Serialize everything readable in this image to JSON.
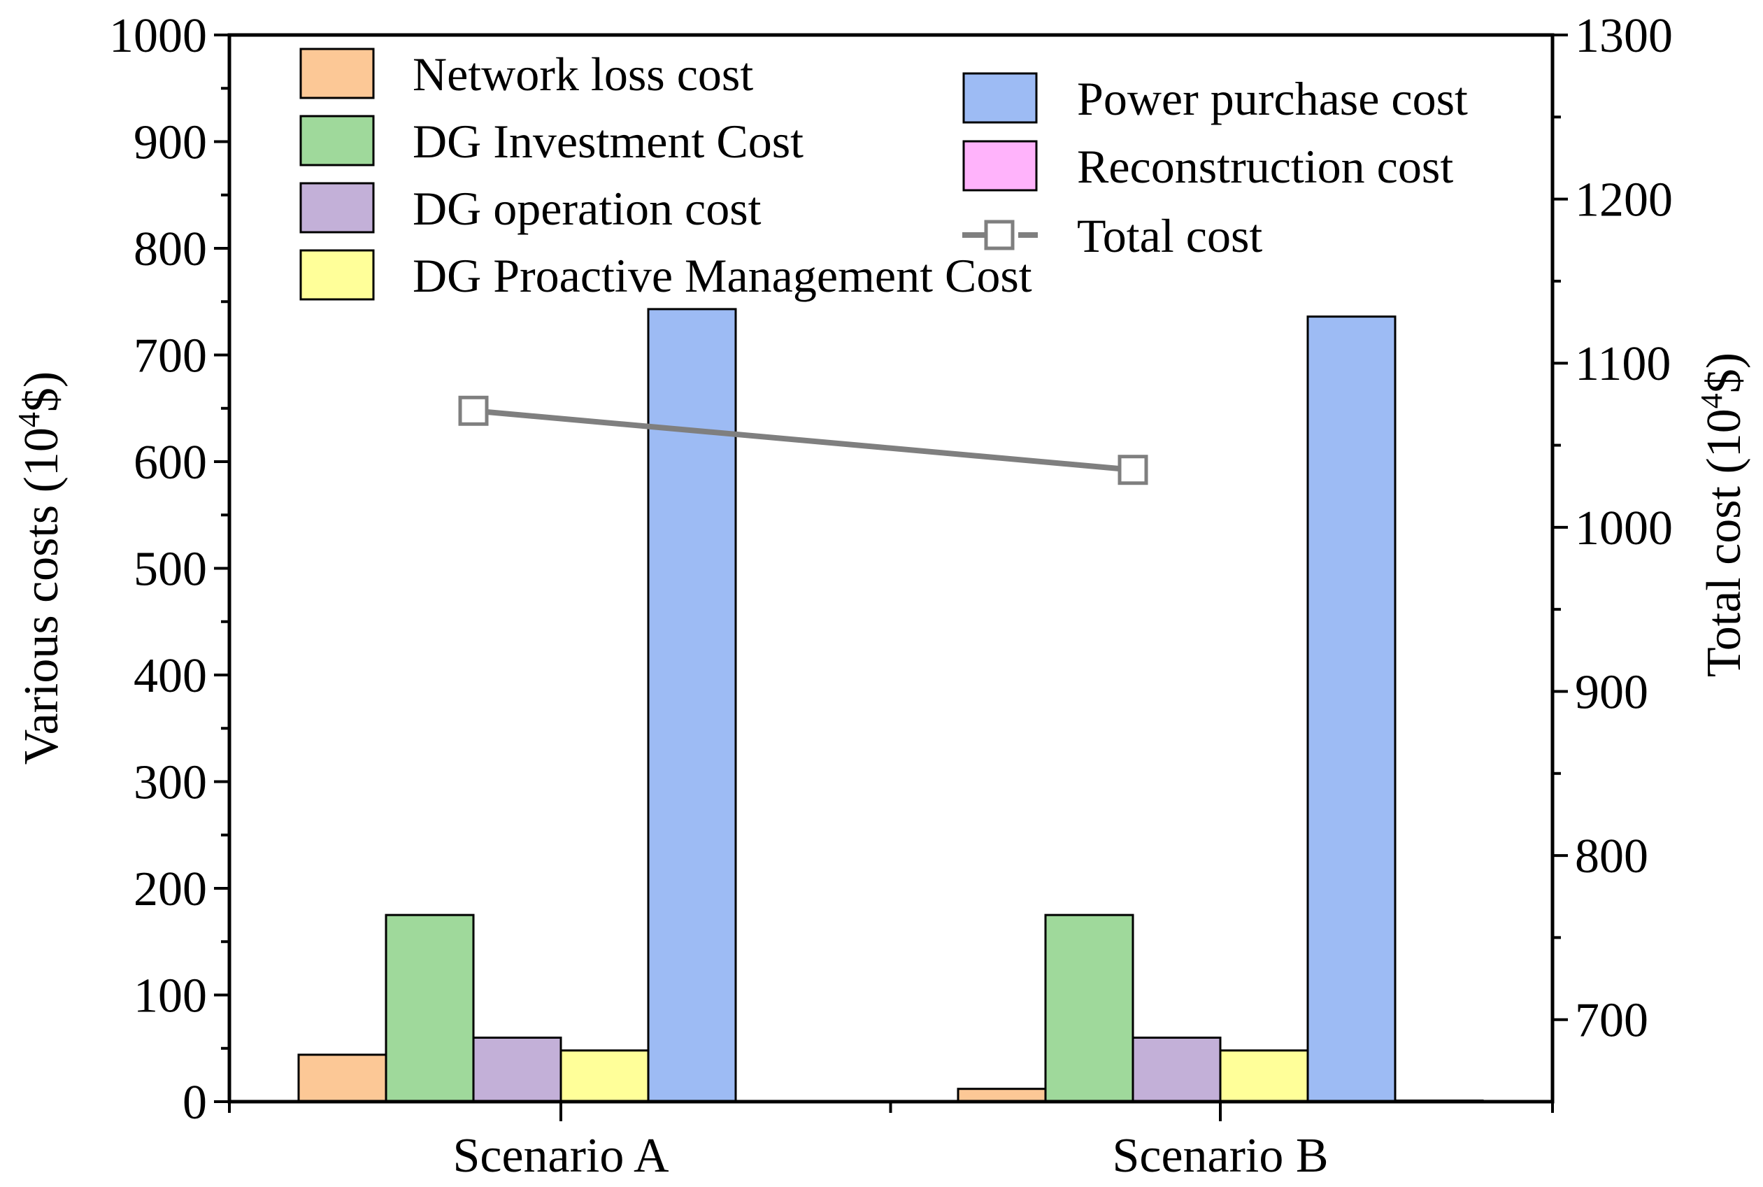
{
  "chart_data": {
    "type": "bar",
    "categories": [
      "Scenario A",
      "Scenario B"
    ],
    "series": [
      {
        "name": "Network loss cost",
        "values": [
          44,
          12
        ],
        "color": "#FCC896"
      },
      {
        "name": "DG Investment Cost",
        "values": [
          175,
          175
        ],
        "color": "#9FD99B"
      },
      {
        "name": "DG operation cost",
        "values": [
          60,
          60
        ],
        "color": "#C3B0D8"
      },
      {
        "name": "DG Proactive Management Cost",
        "values": [
          48,
          48
        ],
        "color": "#FFFF99"
      },
      {
        "name": "Power purchase cost",
        "values": [
          743,
          736
        ],
        "color": "#9DBBF4"
      },
      {
        "name": "Reconstruction cost",
        "values": [
          0,
          1
        ],
        "color": "#FFB3FB"
      }
    ],
    "line_series": {
      "name": "Total cost",
      "values": [
        1071,
        1035
      ],
      "color": "#7F7F7F",
      "axis": "right"
    },
    "y_left": {
      "label_prefix": "Various costs (10",
      "label_sup": "4",
      "label_suffix": "$)",
      "ylim": [
        0,
        1000
      ],
      "ticks": [
        "0",
        "100",
        "200",
        "300",
        "400",
        "500",
        "600",
        "700",
        "800",
        "900",
        "1000"
      ]
    },
    "y_right": {
      "label_prefix": "Total cost (10",
      "label_sup": "4",
      "label_suffix": "$)",
      "ylim": [
        650,
        1300
      ],
      "ticks": [
        "700",
        "800",
        "900",
        "1000",
        "1100",
        "1200",
        "1300"
      ]
    },
    "legend": {
      "left_column": [
        "Network loss cost",
        "DG Investment Cost",
        "DG operation cost",
        "DG Proactive Management Cost"
      ],
      "right_column": [
        "Power purchase cost",
        "Reconstruction cost",
        "Total cost"
      ]
    }
  }
}
